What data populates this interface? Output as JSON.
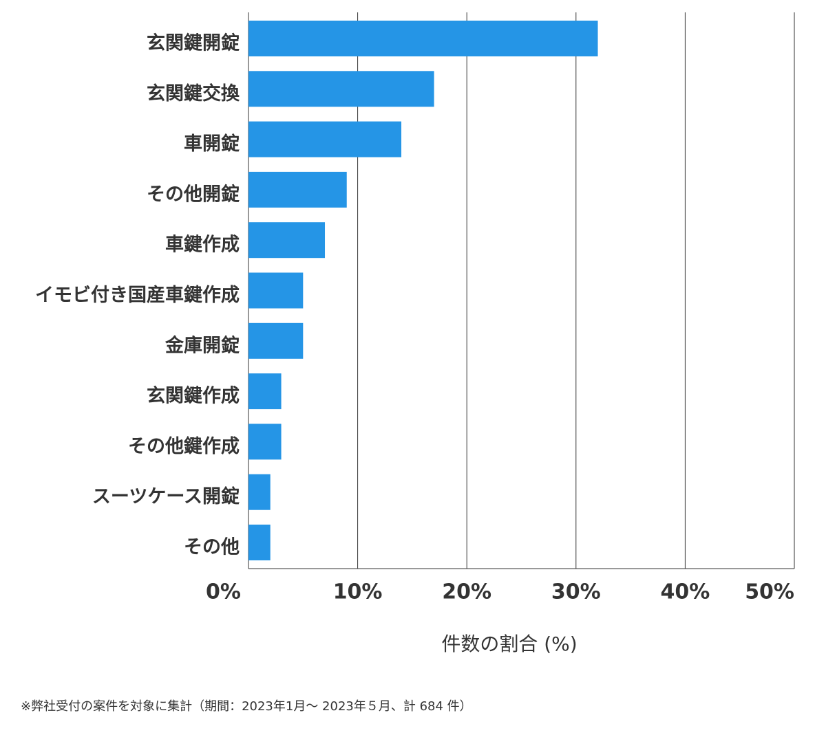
{
  "chart_data": {
    "type": "bar",
    "orientation": "horizontal",
    "categories": [
      "玄関鍵開錠",
      "玄関鍵交換",
      "車開錠",
      "その他開錠",
      "車鍵作成",
      "イモビ付き国産車鍵作成",
      "金庫開錠",
      "玄関鍵作成",
      "その他鍵作成",
      "スーツケース開錠",
      "その他"
    ],
    "values": [
      32,
      17,
      14,
      9,
      7,
      5,
      5,
      3,
      3,
      2,
      2
    ],
    "color": "#2595e6",
    "xlim": [
      0,
      50
    ],
    "xticks": [
      {
        "value": 0,
        "label": "0%"
      },
      {
        "value": 10,
        "label": "10%"
      },
      {
        "value": 20,
        "label": "20%"
      },
      {
        "value": 30,
        "label": "30%"
      },
      {
        "value": 40,
        "label": "40%"
      },
      {
        "value": 50,
        "label": "50%"
      }
    ],
    "xlabel": "件数の割合 (%)",
    "grid": true,
    "footnote": "※弊社受付の案件を対象に集計（期間：2023年1月～ 2023年５月、計 684 件）"
  }
}
